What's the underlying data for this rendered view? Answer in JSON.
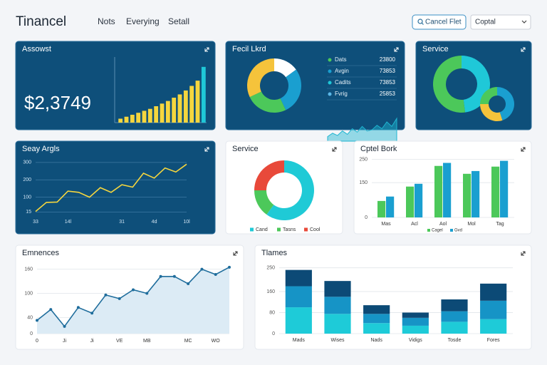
{
  "header": {
    "title": "Tinancel",
    "nav": [
      "Nots",
      "Everying",
      "Setall"
    ],
    "button": "Cancel Flet",
    "select": "Coptal"
  },
  "chart_data": [
    {
      "type": "bar",
      "title": "Assowst",
      "big_value": "$2,3749",
      "values": [
        6,
        9,
        12,
        15,
        18,
        21,
        25,
        29,
        33,
        38,
        43,
        49,
        56,
        64,
        85
      ],
      "color": "#f5d63e",
      "accent_color": "#1fc8d8",
      "ylim": [
        0,
        100
      ]
    },
    {
      "type": "donut",
      "title": "Fecil Lkrd",
      "values": [
        15,
        28,
        25,
        32
      ],
      "colors": [
        "#ffffff",
        "#1a9fd0",
        "#4cc85a",
        "#f5c33b"
      ],
      "legend_labels": [
        "Dats",
        "Avgin",
        "Cadits",
        "Fvrig"
      ],
      "legend_values": [
        23800,
        73853,
        73853,
        25853
      ],
      "legend_colors": [
        "#4cc85a",
        "#1a9fd0",
        "#1fc8d8",
        "#5bb8e8"
      ],
      "trend": [
        4,
        7,
        5,
        9,
        6,
        11,
        8,
        13,
        9,
        10,
        14,
        11,
        17,
        13,
        20
      ],
      "trend_ylim": [
        0,
        22
      ],
      "trend_color": "#1fb5d0"
    },
    {
      "type": "donut",
      "title": "Service",
      "values": [
        48,
        52
      ],
      "colors": [
        "#1fc8d8",
        "#4cc85a"
      ],
      "small_values": [
        45,
        30,
        25
      ],
      "small_colors": [
        "#1a9fd0",
        "#f5c33b",
        "#4cc85a"
      ]
    },
    {
      "type": "line",
      "title": "Seay Argls",
      "x": [
        0,
        1,
        2,
        3,
        4,
        5,
        6,
        7,
        8,
        9,
        10,
        11,
        12,
        13,
        14
      ],
      "values": [
        18,
        70,
        72,
        135,
        128,
        100,
        155,
        128,
        172,
        158,
        238,
        210,
        268,
        245,
        290
      ],
      "xlim": [
        0,
        14
      ],
      "xticks": [
        {
          "value": 0,
          "label": "33"
        },
        {
          "value": 3,
          "label": "14l"
        },
        {
          "value": 8,
          "label": "31"
        },
        {
          "value": 11,
          "label": "4d"
        },
        {
          "value": 14,
          "label": "10l"
        }
      ],
      "ylim": [
        0,
        320
      ],
      "yticks": [
        15,
        100,
        200,
        300
      ],
      "color": "#f5d63e",
      "grid": true
    },
    {
      "type": "donut",
      "title": "Service",
      "categories": [
        "Cand",
        "Tasns",
        "Cool"
      ],
      "values": [
        60,
        15,
        25
      ],
      "colors": [
        "#1fcad6",
        "#4cc85a",
        "#e8493a"
      ]
    },
    {
      "type": "grouped_bar",
      "title": "Cptel Bork",
      "categories": [
        "Mas",
        "Acl",
        "Aol",
        "Mol",
        "Tag"
      ],
      "series": [
        {
          "name": "Cagel",
          "color": "#4cc85a",
          "values": [
            71,
            133,
            222,
            188,
            219
          ]
        },
        {
          "name": "Gvd",
          "color": "#1a9fd0",
          "values": [
            90,
            145,
            235,
            200,
            244
          ]
        }
      ],
      "ylim": [
        0,
        255
      ],
      "yticks": [
        0,
        150,
        250
      ],
      "grid": true
    },
    {
      "type": "area",
      "title": "Emnences",
      "x": [
        0,
        1,
        2,
        3,
        4,
        5,
        6,
        7,
        8,
        9,
        10,
        11,
        12,
        13,
        14
      ],
      "values": [
        33,
        60,
        18,
        65,
        51,
        96,
        87,
        109,
        100,
        142,
        142,
        124,
        160,
        147,
        165
      ],
      "xlim": [
        0,
        14
      ],
      "xticks": [
        {
          "value": 0,
          "label": "0"
        },
        {
          "value": 2,
          "label": "Ji"
        },
        {
          "value": 4,
          "label": "Ji"
        },
        {
          "value": 6,
          "label": "VE"
        },
        {
          "value": 8,
          "label": "MB"
        },
        {
          "value": 11,
          "label": "MC"
        },
        {
          "value": 13,
          "label": "WO"
        }
      ],
      "ylim": [
        0,
        170
      ],
      "yticks": [
        0,
        40,
        100,
        160
      ],
      "color": "#1f6d9c",
      "fill": "#dcebf5",
      "grid": true
    },
    {
      "type": "stacked_bar",
      "title": "Tlames",
      "categories": [
        "Mads",
        "Wises",
        "Nads",
        "Vidigs",
        "Tosde",
        "Fores"
      ],
      "series": [
        {
          "color": "#1ecbd8",
          "values": [
            100,
            75,
            40,
            30,
            45,
            55
          ]
        },
        {
          "color": "#1694c6",
          "values": [
            80,
            65,
            35,
            30,
            40,
            70
          ]
        },
        {
          "color": "#0c4a76",
          "values": [
            62,
            60,
            33,
            20,
            45,
            65
          ]
        }
      ],
      "ylim": [
        0,
        260
      ],
      "yticks": [
        0,
        80,
        160,
        250
      ],
      "grid": true
    }
  ]
}
